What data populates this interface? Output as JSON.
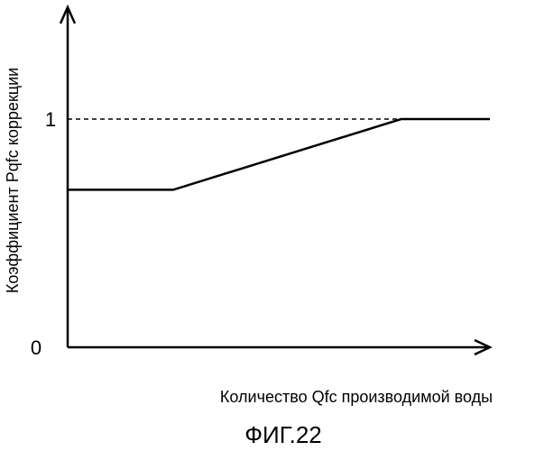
{
  "chart_data": {
    "type": "line",
    "xlabel": "Количество Qfc производимой воды",
    "ylabel": "Коэффициент Pqfc коррекции",
    "yticks": [
      {
        "value": 0,
        "label": "0"
      },
      {
        "value": 1,
        "label": "1"
      }
    ],
    "ylim": [
      0,
      1.5
    ],
    "xlim": [
      0,
      1
    ],
    "grid": false,
    "reference_line": {
      "y": 1,
      "style": "dashed"
    },
    "series": [
      {
        "points": [
          {
            "x": 0.0,
            "y": 0.69
          },
          {
            "x": 0.25,
            "y": 0.69
          },
          {
            "x": 0.79,
            "y": 1.0
          },
          {
            "x": 1.0,
            "y": 1.0
          }
        ]
      }
    ]
  },
  "figure_label": "ФИГ.22",
  "colors": {
    "ink": "#000000",
    "background": "#ffffff"
  }
}
